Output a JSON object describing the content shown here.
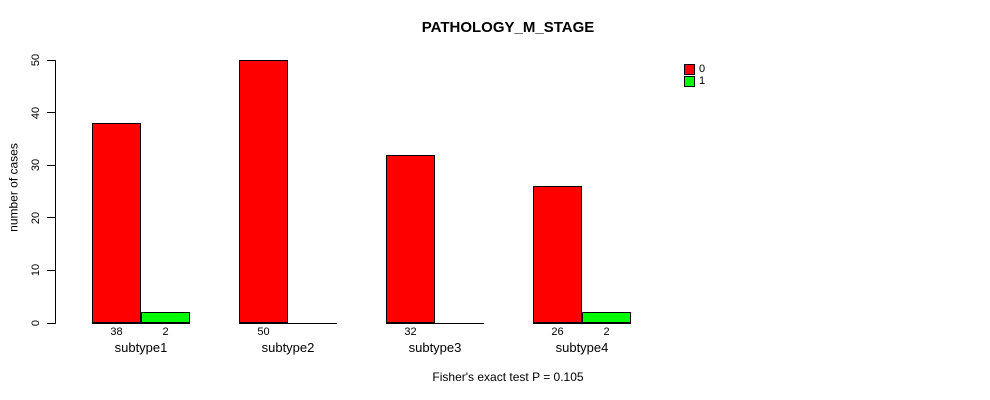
{
  "chart_data": {
    "type": "bar",
    "title": "PATHOLOGY_M_STAGE",
    "ylabel": "number of cases",
    "xlabel": "",
    "footer": "Fisher's exact test P = 0.105",
    "categories": [
      "subtype1",
      "subtype2",
      "subtype3",
      "subtype4"
    ],
    "series": [
      {
        "name": "0",
        "color": "#FF0000",
        "values": [
          38,
          50,
          32,
          26
        ]
      },
      {
        "name": "1",
        "color": "#00FF00",
        "values": [
          2,
          0,
          0,
          2
        ]
      }
    ],
    "bar_value_labels": [
      [
        "38",
        "2"
      ],
      [
        "50",
        ""
      ],
      [
        "32",
        ""
      ],
      [
        "26",
        "2"
      ]
    ],
    "ylim": [
      0,
      50
    ],
    "yticks": [
      0,
      10,
      20,
      30,
      40,
      50
    ],
    "legend_position": "top-right",
    "grid": false,
    "background": "#FFFFFF",
    "axis_color": "#000000"
  }
}
